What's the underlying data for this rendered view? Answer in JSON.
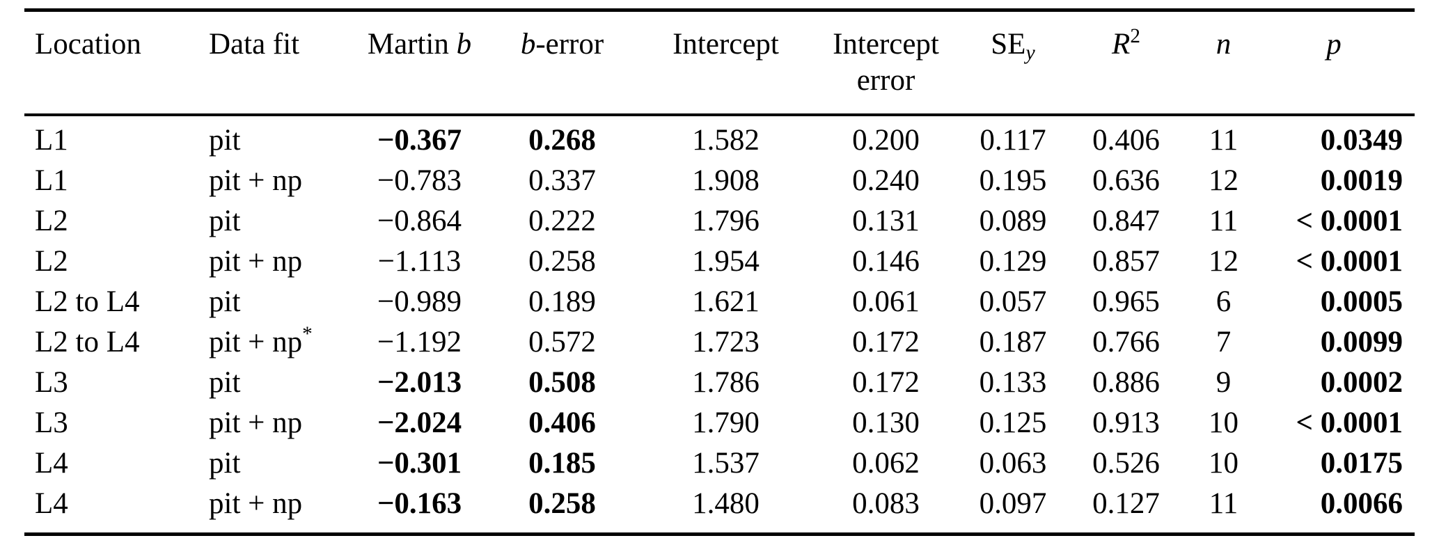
{
  "table": {
    "columns": [
      {
        "id": "location",
        "label": [
          {
            "t": "Location"
          }
        ]
      },
      {
        "id": "fit",
        "label": [
          {
            "t": "Data fit"
          }
        ]
      },
      {
        "id": "b",
        "label": [
          {
            "t": "Martin "
          },
          {
            "t": "b",
            "i": true
          }
        ]
      },
      {
        "id": "b_err",
        "label": [
          {
            "t": "b",
            "i": true
          },
          {
            "t": "-error"
          }
        ]
      },
      {
        "id": "intercept",
        "label": [
          {
            "t": "Intercept"
          }
        ]
      },
      {
        "id": "int_err",
        "label": [
          {
            "t": "Intercept"
          },
          {
            "br": true
          },
          {
            "t": "error"
          }
        ]
      },
      {
        "id": "se",
        "label": [
          {
            "t": "SE"
          },
          {
            "t": "y",
            "i": true,
            "sub": true
          }
        ]
      },
      {
        "id": "r2",
        "label": [
          {
            "t": "R",
            "i": true
          },
          {
            "t": "2",
            "sup": true
          }
        ]
      },
      {
        "id": "n",
        "label": [
          {
            "t": "n",
            "i": true
          }
        ]
      },
      {
        "id": "p",
        "label": [
          {
            "t": "p",
            "i": true
          }
        ]
      }
    ],
    "rows": [
      {
        "location": "L1",
        "fit": "pit",
        "fit_sup": "",
        "b": "−0.367",
        "b_err": "0.268",
        "b_bold": true,
        "intercept": "1.582",
        "int_err": "0.200",
        "se_y": "0.117",
        "r2": "0.406",
        "n": "11",
        "p": "0.0349",
        "p_bold": true
      },
      {
        "location": "L1",
        "fit": "pit + np",
        "fit_sup": "",
        "b": "−0.783",
        "b_err": "0.337",
        "b_bold": false,
        "intercept": "1.908",
        "int_err": "0.240",
        "se_y": "0.195",
        "r2": "0.636",
        "n": "12",
        "p": "0.0019",
        "p_bold": true
      },
      {
        "location": "L2",
        "fit": "pit",
        "fit_sup": "",
        "b": "−0.864",
        "b_err": "0.222",
        "b_bold": false,
        "intercept": "1.796",
        "int_err": "0.131",
        "se_y": "0.089",
        "r2": "0.847",
        "n": "11",
        "p": "< 0.0001",
        "p_bold": true
      },
      {
        "location": "L2",
        "fit": "pit + np",
        "fit_sup": "",
        "b": "−1.113",
        "b_err": "0.258",
        "b_bold": false,
        "intercept": "1.954",
        "int_err": "0.146",
        "se_y": "0.129",
        "r2": "0.857",
        "n": "12",
        "p": "< 0.0001",
        "p_bold": true
      },
      {
        "location": "L2 to L4",
        "fit": "pit",
        "fit_sup": "",
        "b": "−0.989",
        "b_err": "0.189",
        "b_bold": false,
        "intercept": "1.621",
        "int_err": "0.061",
        "se_y": "0.057",
        "r2": "0.965",
        "n": "6",
        "p": "0.0005",
        "p_bold": true
      },
      {
        "location": "L2 to L4",
        "fit": "pit + np",
        "fit_sup": "*",
        "b": "−1.192",
        "b_err": "0.572",
        "b_bold": false,
        "intercept": "1.723",
        "int_err": "0.172",
        "se_y": "0.187",
        "r2": "0.766",
        "n": "7",
        "p": "0.0099",
        "p_bold": true
      },
      {
        "location": "L3",
        "fit": "pit",
        "fit_sup": "",
        "b": "−2.013",
        "b_err": "0.508",
        "b_bold": true,
        "intercept": "1.786",
        "int_err": "0.172",
        "se_y": "0.133",
        "r2": "0.886",
        "n": "9",
        "p": "0.0002",
        "p_bold": true
      },
      {
        "location": "L3",
        "fit": "pit + np",
        "fit_sup": "",
        "b": "−2.024",
        "b_err": "0.406",
        "b_bold": true,
        "intercept": "1.790",
        "int_err": "0.130",
        "se_y": "0.125",
        "r2": "0.913",
        "n": "10",
        "p": "< 0.0001",
        "p_bold": true
      },
      {
        "location": "L4",
        "fit": "pit",
        "fit_sup": "",
        "b": "−0.301",
        "b_err": "0.185",
        "b_bold": true,
        "intercept": "1.537",
        "int_err": "0.062",
        "se_y": "0.063",
        "r2": "0.526",
        "n": "10",
        "p": "0.0175",
        "p_bold": true
      },
      {
        "location": "L4",
        "fit": "pit + np",
        "fit_sup": "",
        "b": "−0.163",
        "b_err": "0.258",
        "b_bold": true,
        "intercept": "1.480",
        "int_err": "0.083",
        "se_y": "0.097",
        "r2": "0.127",
        "n": "11",
        "p": "0.0066",
        "p_bold": true
      }
    ],
    "colors": {
      "text": "#000000",
      "background": "#ffffff",
      "rule": "#000000"
    }
  }
}
